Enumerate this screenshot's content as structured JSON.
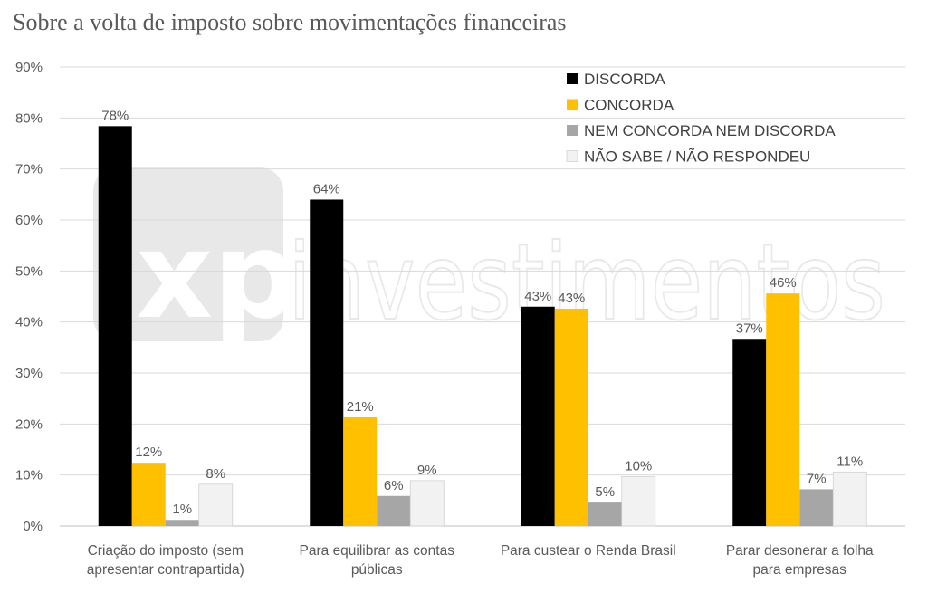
{
  "chart_data": {
    "type": "bar",
    "title": "Sobre a volta de imposto sobre movimentações financeiras",
    "categories": [
      [
        "Criação do imposto (sem",
        "apresentar contrapartida)"
      ],
      [
        "Para equilibrar as contas",
        "públicas"
      ],
      [
        "Para custear o Renda Brasil"
      ],
      [
        "Parar desonerar a folha",
        "para empresas"
      ]
    ],
    "series": [
      {
        "name": "DISCORDA",
        "color": "#000000",
        "values": [
          78.4,
          64.0,
          43.0,
          36.7
        ],
        "labels": [
          "78%",
          "64%",
          "43%",
          "37%"
        ]
      },
      {
        "name": "CONCORDA",
        "color": "#FFC000",
        "values": [
          12.4,
          21.3,
          42.6,
          45.6
        ],
        "labels": [
          "12%",
          "21%",
          "43%",
          "46%"
        ]
      },
      {
        "name": "NEM CONCORDA NEM DISCORDA",
        "color": "#A6A6A6",
        "values": [
          1.2,
          5.9,
          4.6,
          7.2
        ],
        "labels": [
          "1%",
          "6%",
          "5%",
          "7%"
        ]
      },
      {
        "name": "NÃO SABE / NÃO RESPONDEU",
        "color": "#F2F2F2",
        "values": [
          8.2,
          8.9,
          9.7,
          10.6
        ],
        "labels": [
          "8%",
          "9%",
          "10%",
          "11%"
        ]
      }
    ],
    "ylim": [
      0,
      90
    ],
    "yticks": [
      0,
      10,
      20,
      30,
      40,
      50,
      60,
      70,
      80,
      90
    ],
    "ytick_labels": [
      "0%",
      "10%",
      "20%",
      "30%",
      "40%",
      "50%",
      "60%",
      "70%",
      "80%",
      "90%"
    ],
    "grid": true,
    "legend": "top-right"
  },
  "watermark": {
    "mark": "xp",
    "text": "investimentos"
  }
}
